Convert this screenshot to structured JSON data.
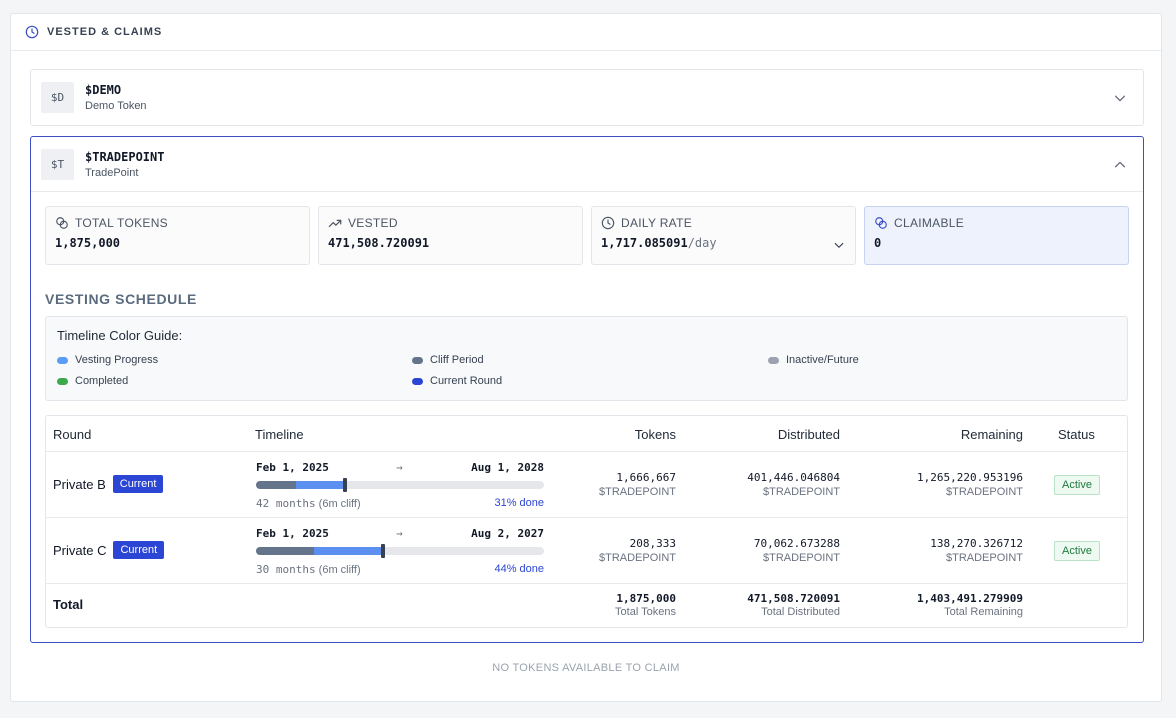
{
  "header": {
    "title": "VESTED & CLAIMS",
    "icon": "clock-icon"
  },
  "tokens": [
    {
      "badge": "$D",
      "symbol": "$DEMO",
      "name": "Demo Token",
      "expanded": false
    },
    {
      "badge": "$T",
      "symbol": "$TRADEPOINT",
      "name": "TradePoint",
      "expanded": true
    }
  ],
  "stats": {
    "total_tokens": {
      "label": "TOTAL TOKENS",
      "value": "1,875,000"
    },
    "vested": {
      "label": "VESTED",
      "value": "471,508.720091"
    },
    "daily_rate": {
      "label": "DAILY RATE",
      "value": "1,717.085091",
      "unit": "/day"
    },
    "claimable": {
      "label": "CLAIMABLE",
      "value": "0"
    }
  },
  "schedule": {
    "title": "VESTING SCHEDULE",
    "guide": {
      "title": "Timeline Color Guide:",
      "items": [
        {
          "label": "Vesting Progress",
          "color": "#5b9cf6"
        },
        {
          "label": "Cliff Period",
          "color": "#64748b"
        },
        {
          "label": "Inactive/Future",
          "color": "#9ca3af"
        },
        {
          "label": "Completed",
          "color": "#3ea84f"
        },
        {
          "label": "Current Round",
          "color": "#2b45d4"
        }
      ]
    },
    "columns": [
      "Round",
      "Timeline",
      "Tokens",
      "Distributed",
      "Remaining",
      "Status"
    ],
    "rows": [
      {
        "round": "Private B",
        "badge": "Current",
        "start": "Feb 1, 2025",
        "arrow": "→",
        "end": "Aug 1, 2028",
        "duration": "42 months",
        "cliff": "(6m cliff)",
        "progress_label": "31% done",
        "cliff_fraction": 0.14,
        "progress_fraction": 0.31,
        "tokens": "1,666,667",
        "tokens_unit": "$TRADEPOINT",
        "distributed": "401,446.046804",
        "distributed_unit": "$TRADEPOINT",
        "remaining": "1,265,220.953196",
        "remaining_unit": "$TRADEPOINT",
        "status": "Active"
      },
      {
        "round": "Private C",
        "badge": "Current",
        "start": "Feb 1, 2025",
        "arrow": "→",
        "end": "Aug 2, 2027",
        "duration": "30 months",
        "cliff": "(6m cliff)",
        "progress_label": "44% done",
        "cliff_fraction": 0.2,
        "progress_fraction": 0.44,
        "tokens": "208,333",
        "tokens_unit": "$TRADEPOINT",
        "distributed": "70,062.673288",
        "distributed_unit": "$TRADEPOINT",
        "remaining": "138,270.326712",
        "remaining_unit": "$TRADEPOINT",
        "status": "Active"
      }
    ],
    "total": {
      "label": "Total",
      "tokens": "1,875,000",
      "tokens_sub": "Total Tokens",
      "distributed": "471,508.720091",
      "distributed_sub": "Total Distributed",
      "remaining": "1,403,491.279909",
      "remaining_sub": "Total Remaining"
    }
  },
  "footer": {
    "note": "NO TOKENS AVAILABLE TO CLAIM"
  }
}
